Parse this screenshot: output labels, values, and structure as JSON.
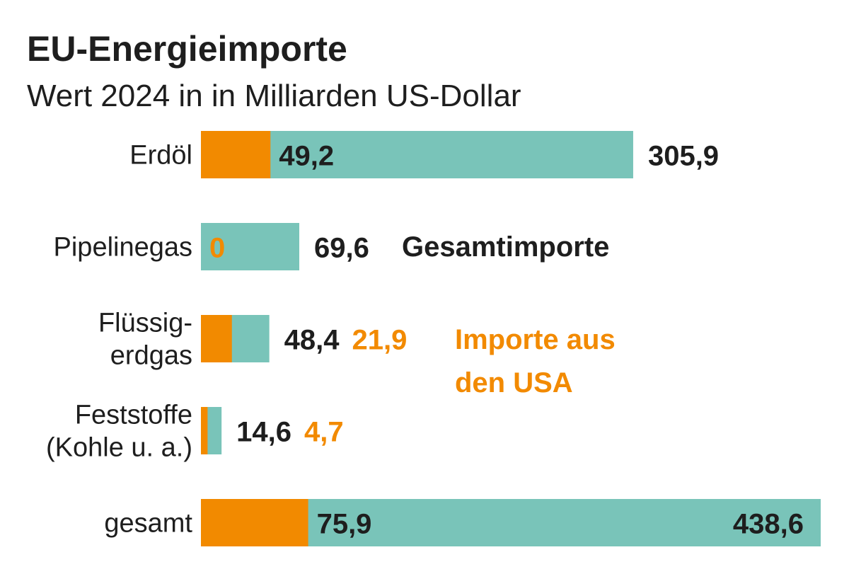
{
  "chart_data": {
    "type": "bar",
    "orientation": "horizontal",
    "title": "EU-Energieimporte",
    "subtitle": "Wert 2024 in in Milliarden US-Dollar",
    "categories": [
      [
        "Erdöl"
      ],
      [
        "Pipelinegas"
      ],
      [
        "Flüssig-",
        "erdgas"
      ],
      [
        "Feststoffe",
        "(Kohle u. a.)"
      ],
      [
        "gesamt"
      ]
    ],
    "series": [
      {
        "name": "Gesamtimporte",
        "values": [
          305.9,
          69.6,
          48.4,
          14.6,
          438.6
        ],
        "labels": [
          "305,9",
          "69,6",
          "48,4",
          "14,6",
          "438,6"
        ],
        "color": "#79C4B9"
      },
      {
        "name": "Importe aus den USA",
        "values": [
          49.2,
          0,
          21.9,
          4.7,
          75.9
        ],
        "labels": [
          "49,2",
          "0",
          "21,9",
          "4,7",
          "75,9"
        ],
        "color": "#F28A00"
      }
    ],
    "legend": {
      "total_label": "Gesamtimporte",
      "us_label_lines": [
        "Importe aus",
        "den USA"
      ]
    },
    "xlim": [
      0,
      438.6
    ],
    "grid": false,
    "overlay": true
  },
  "colors": {
    "text": "#1e1e1e",
    "orange": "#F28A00",
    "teal": "#79C4B9"
  }
}
